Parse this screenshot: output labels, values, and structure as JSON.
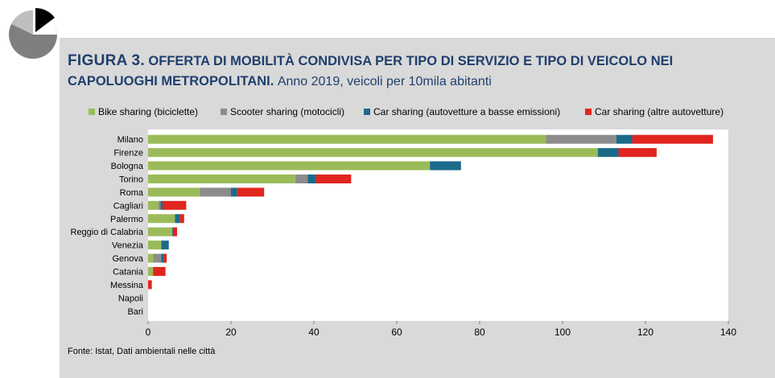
{
  "figure": {
    "label": "FIGURA 3.",
    "title": "OFFERTA DI MOBILITÀ CONDIVISA PER TIPO DI SERVIZIO E TIPO DI VEICOLO NEI CAPOLUOGHI METROPOLITANI.",
    "subtitle": "Anno 2019, veicoli per 10mila abitanti",
    "source": "Fonte: Istat, Dati ambientali nelle città"
  },
  "logo_icon": "pie-chart-icon",
  "colors": {
    "bike": "#9bbb59",
    "scooter": "#8c8c8c",
    "car_low": "#1b6a8a",
    "car_other": "#e0251f",
    "panel": "#d9d9d9",
    "title": "#1f3f6e"
  },
  "chart_data": {
    "type": "bar",
    "orientation": "horizontal",
    "stacked": true,
    "categories": [
      "Milano",
      "Firenze",
      "Bologna",
      "Torino",
      "Roma",
      "Cagliari",
      "Palermo",
      "Reggio di Calabria",
      "Venezia",
      "Genova",
      "Catania",
      "Messina",
      "Napoli",
      "Bari"
    ],
    "series": [
      {
        "name": "Bike sharing (biciclette)",
        "color": "#9bbb59",
        "values": [
          96,
          108.5,
          68,
          35.5,
          12.5,
          2.5,
          6.5,
          5.8,
          3.2,
          1.2,
          1.2,
          0,
          0,
          0
        ]
      },
      {
        "name": "Scooter sharing (motocicli)",
        "color": "#8c8c8c",
        "values": [
          17,
          0,
          0,
          3,
          7.5,
          0.5,
          0,
          0,
          0,
          2,
          0,
          0,
          0,
          0
        ]
      },
      {
        "name": "Car sharing (autovetture a basse emissioni)",
        "color": "#1b6a8a",
        "values": [
          3.8,
          5,
          7.5,
          2,
          1.5,
          0.5,
          1.2,
          0.2,
          1.8,
          0.5,
          0,
          0,
          0,
          0
        ]
      },
      {
        "name": "Car sharing (altre autovetture)",
        "color": "#e0251f",
        "values": [
          19.5,
          9.2,
          0,
          8.5,
          6.5,
          5.7,
          1,
          1,
          0,
          0.8,
          3,
          0.9,
          0,
          0
        ]
      }
    ],
    "xlim": [
      0,
      140
    ],
    "xticks": [
      0,
      20,
      40,
      60,
      80,
      100,
      120,
      140
    ],
    "xlabel": "",
    "ylabel": "",
    "grid": false,
    "legend_position": "top"
  }
}
